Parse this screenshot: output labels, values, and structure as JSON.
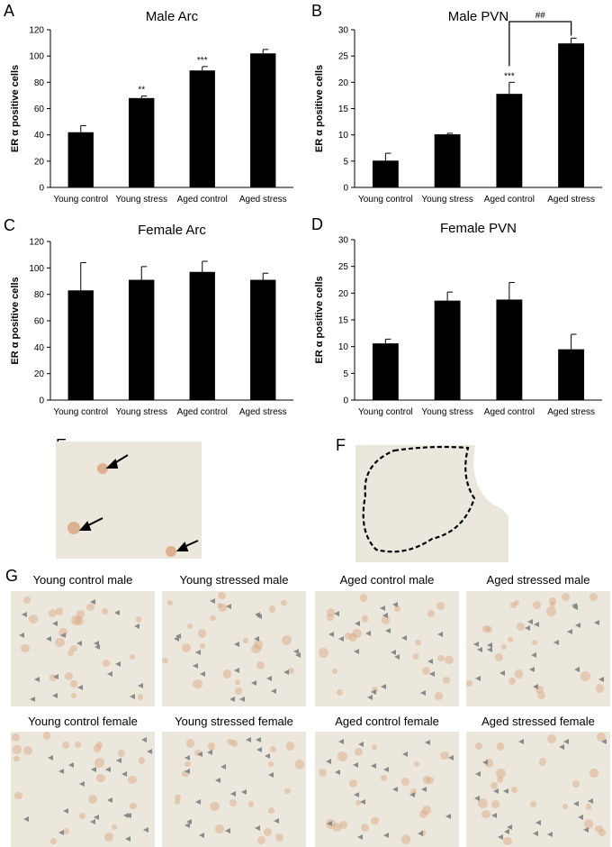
{
  "colors": {
    "bar": "#000000",
    "tissue_bg": "#ebe7dc",
    "cell": "#d9a47c",
    "marker": "#8a8a8a"
  },
  "letters": {
    "a": "A",
    "b": "B",
    "c": "C",
    "d": "D",
    "e": "E",
    "f": "F",
    "g": "G"
  },
  "chart_data": [
    {
      "type": "bar",
      "panel": "A",
      "title": "Male Arc",
      "ylabel": "ER α positive cells",
      "categories": [
        "Young control",
        "Young stress",
        "Aged control",
        "Aged stress"
      ],
      "values": [
        42,
        68,
        89,
        102
      ],
      "errors": [
        5,
        1.5,
        3,
        3
      ],
      "ylim": [
        0,
        120
      ],
      "yticks": [
        0,
        20,
        40,
        60,
        80,
        100,
        120
      ],
      "annotations": [
        "",
        "**",
        "***",
        ""
      ]
    },
    {
      "type": "bar",
      "panel": "B",
      "title": "Male  PVN",
      "ylabel": "ER α positive cells",
      "categories": [
        "Young control",
        "Young stress",
        "Aged control",
        "Aged stress"
      ],
      "values": [
        5.1,
        10.1,
        17.8,
        27.4
      ],
      "errors": [
        1.4,
        0.2,
        2.2,
        1.0
      ],
      "ylim": [
        0,
        30
      ],
      "yticks": [
        0,
        5,
        10,
        15,
        20,
        25,
        30
      ],
      "annotations": [
        "",
        "",
        "***",
        ""
      ],
      "bracket": {
        "from": 2,
        "to": 3,
        "label": "##"
      }
    },
    {
      "type": "bar",
      "panel": "C",
      "title": "Female  Arc",
      "ylabel": "ER α positive cells",
      "categories": [
        "Young control",
        "Young stress",
        "Aged control",
        "Aged stress"
      ],
      "values": [
        83,
        91,
        97,
        91
      ],
      "errors": [
        21,
        10,
        8,
        5
      ],
      "ylim": [
        0,
        120
      ],
      "yticks": [
        0,
        20,
        40,
        60,
        80,
        100,
        120
      ],
      "annotations": [
        "",
        "",
        "",
        ""
      ]
    },
    {
      "type": "bar",
      "panel": "D",
      "title": "Female  PVN",
      "ylabel": "ER α positive cells",
      "categories": [
        "Young control",
        "Young stress",
        "Aged control",
        "Aged stress"
      ],
      "values": [
        10.6,
        18.6,
        18.8,
        9.5
      ],
      "errors": [
        0.8,
        1.6,
        3.2,
        2.8
      ],
      "ylim": [
        0,
        30
      ],
      "yticks": [
        0,
        5,
        10,
        15,
        20,
        25,
        30
      ],
      "annotations": [
        "",
        "",
        "",
        ""
      ]
    }
  ],
  "micrographs": {
    "labels": [
      "Young control male",
      "Young stressed male",
      "Aged control male",
      "Aged stressed male",
      "Young control female",
      "Young stressed female",
      "Aged control female",
      "Aged stressed female"
    ]
  }
}
